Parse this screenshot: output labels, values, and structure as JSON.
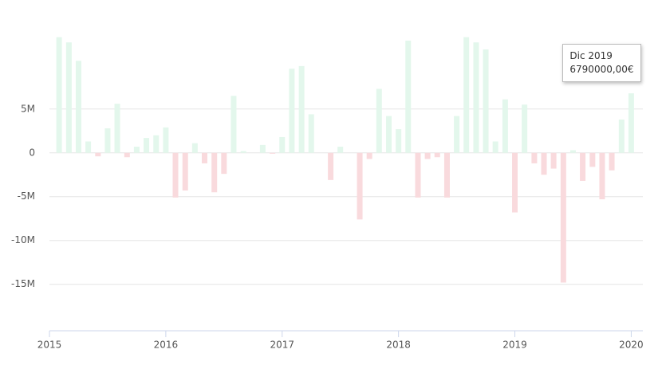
{
  "chart_data": {
    "type": "bar",
    "x": [
      2015.083,
      2015.167,
      2015.25,
      2015.333,
      2015.417,
      2015.5,
      2015.583,
      2015.667,
      2015.75,
      2015.833,
      2015.917,
      2016.0,
      2016.083,
      2016.167,
      2016.25,
      2016.333,
      2016.417,
      2016.5,
      2016.583,
      2016.667,
      2016.75,
      2016.833,
      2016.917,
      2017.0,
      2017.083,
      2017.167,
      2017.25,
      2017.333,
      2017.417,
      2017.5,
      2017.583,
      2017.667,
      2017.75,
      2017.833,
      2017.917,
      2018.0,
      2018.083,
      2018.167,
      2018.25,
      2018.333,
      2018.417,
      2018.5,
      2018.583,
      2018.667,
      2018.75,
      2018.833,
      2018.917,
      2019.0,
      2019.083,
      2019.167,
      2019.25,
      2019.333,
      2019.417,
      2019.5,
      2019.583,
      2019.667,
      2019.75,
      2019.833,
      2019.917,
      2020.0
    ],
    "values": [
      13200000,
      12600000,
      10500000,
      1300000,
      -400000,
      2800000,
      5600000,
      -500000,
      700000,
      1700000,
      2000000,
      2900000,
      -5100000,
      -4300000,
      1100000,
      -1200000,
      -4500000,
      -2400000,
      6500000,
      200000,
      0,
      900000,
      -100000,
      1800000,
      9600000,
      9900000,
      4400000,
      0,
      -3100000,
      700000,
      0,
      -7600000,
      -700000,
      7300000,
      4200000,
      2700000,
      12800000,
      -5100000,
      -700000,
      -500000,
      -5100000,
      4200000,
      13200000,
      12600000,
      11800000,
      1300000,
      6100000,
      -6800000,
      5500000,
      -1200000,
      -2500000,
      -1800000,
      -14800000,
      300000,
      -3200000,
      -1600000,
      -5300000,
      -2000000,
      3800000,
      6790000
    ],
    "positive_color": "#e3f7ec",
    "negative_color": "#f9dadd",
    "xlim": [
      2015,
      2020.1
    ],
    "xticks": [
      2015,
      2016,
      2017,
      2018,
      2019,
      2020
    ],
    "ylim": [
      -20300000,
      15800000
    ],
    "yticks": [
      {
        "value": -15000000,
        "label": "-15M"
      },
      {
        "value": -10000000,
        "label": "-10M"
      },
      {
        "value": -5000000,
        "label": "-5M"
      },
      0,
      {
        "value": 5000000,
        "label": "5M"
      }
    ],
    "grid": true,
    "tooltip": {
      "title": "Dic 2019",
      "text": "6790000,00€"
    }
  }
}
